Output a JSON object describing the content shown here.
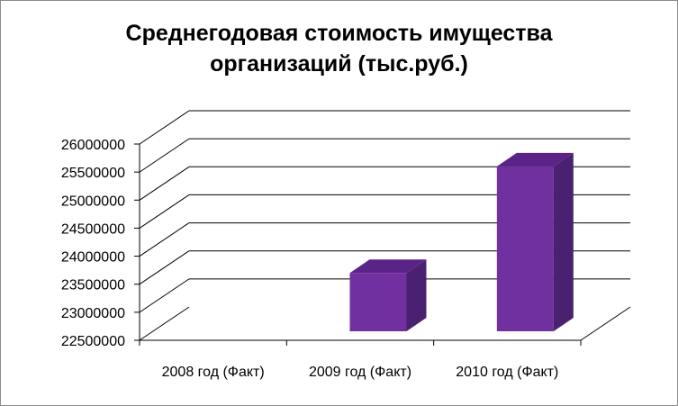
{
  "chart_data": {
    "type": "bar",
    "title": [
      "Среднегодовая стоимость имущества",
      "организаций (тыс.руб.)"
    ],
    "categories": [
      "2008 год (Факт)",
      "2009 год  (Факт)",
      "2010 год  (Факт)"
    ],
    "values": [
      22500000,
      23700000,
      25600000
    ],
    "yticks": [
      "26000000",
      "25500000",
      "25000000",
      "24500000",
      "24000000",
      "23500000",
      "23000000",
      "22500000"
    ],
    "ylim": [
      22500000,
      26000000
    ],
    "ystep": 500000,
    "grid": true,
    "bar_color": "#7030A0",
    "bar_side_color": "#4A2070",
    "bar_top_color": "#5A2388",
    "grid_color": "#000000"
  }
}
